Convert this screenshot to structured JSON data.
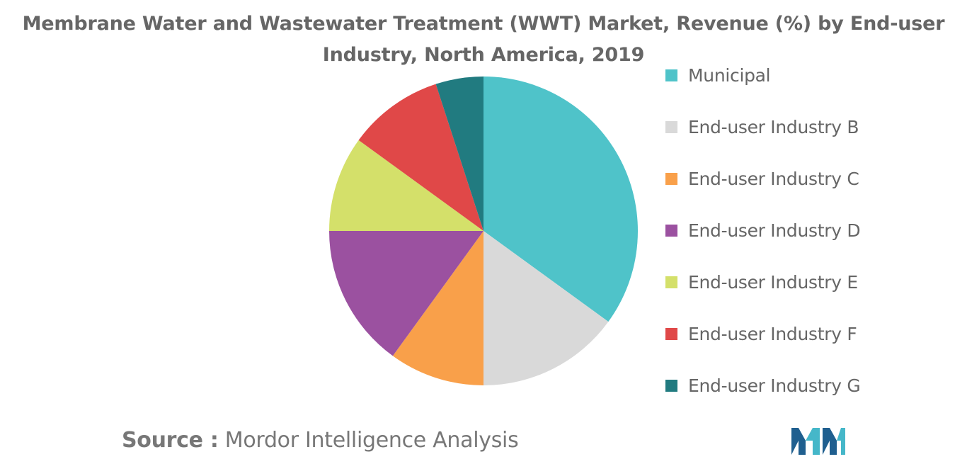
{
  "title": {
    "line1": "Membrane Water and Wastewater Treatment (WWT) Market, Revenue (%) by End-user",
    "line2": "Industry, North America, 2019"
  },
  "source": {
    "label": "Source :",
    "text": "Mordor Intelligence Analysis"
  },
  "chart_data": {
    "type": "pie",
    "title": "Membrane Water and Wastewater Treatment (WWT) Market, Revenue (%) by End-user Industry, North America, 2019",
    "categories": [
      "Municipal",
      "End-user Industry B",
      "End-user Industry C",
      "End-user Industry D",
      "End-user Industry E",
      "End-user Industry F",
      "End-user Industry G"
    ],
    "values": [
      35,
      15,
      10,
      15,
      10,
      10,
      5
    ],
    "colors": [
      "#4fc3c9",
      "#d9d9d9",
      "#f9a04a",
      "#9b51a0",
      "#d4e06a",
      "#e04848",
      "#217b80"
    ],
    "start_angle_deg": 0,
    "direction": "clockwise",
    "legend_position": "right"
  },
  "logo": {
    "icon": "mordor-intelligence-logo-icon",
    "colors": [
      "#1f5f8f",
      "#45b7c9"
    ]
  }
}
